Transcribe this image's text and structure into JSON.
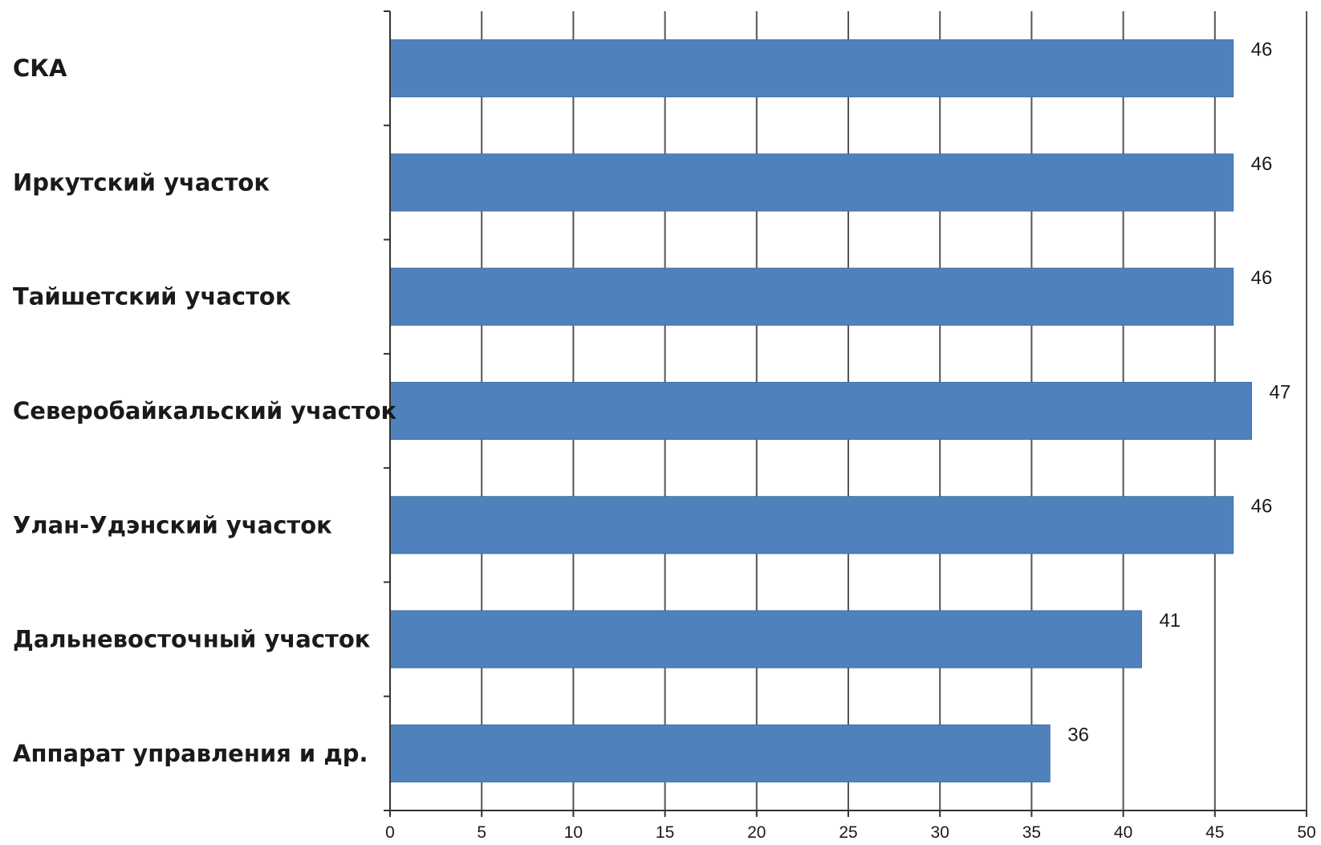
{
  "chart_data": {
    "type": "bar",
    "orientation": "horizontal",
    "categories": [
      "СКА",
      "Иркутский участок",
      "Тайшетский участок",
      "Северобайкальский участок",
      "Улан-Удэнский участок",
      "Дальневосточный участок",
      "Аппарат управления и др."
    ],
    "values": [
      46,
      46,
      46,
      47,
      46,
      41,
      36
    ],
    "data_labels": [
      "46",
      "46",
      "46",
      "47",
      "46",
      "41",
      "36"
    ],
    "xlim": [
      0,
      50
    ],
    "x_ticks": [
      0,
      5,
      10,
      15,
      20,
      25,
      30,
      35,
      40,
      45,
      50
    ],
    "x_tick_labels": [
      "0",
      "5",
      "10",
      "15",
      "20",
      "25",
      "30",
      "35",
      "40",
      "45",
      "50"
    ],
    "grid": "vertical",
    "legend": "none",
    "colors": {
      "bar": "#4f81bd",
      "bar_edge": "#3f6fa8",
      "grid": "#555555",
      "axis": "#333333",
      "text": "#1a1a1a"
    }
  }
}
